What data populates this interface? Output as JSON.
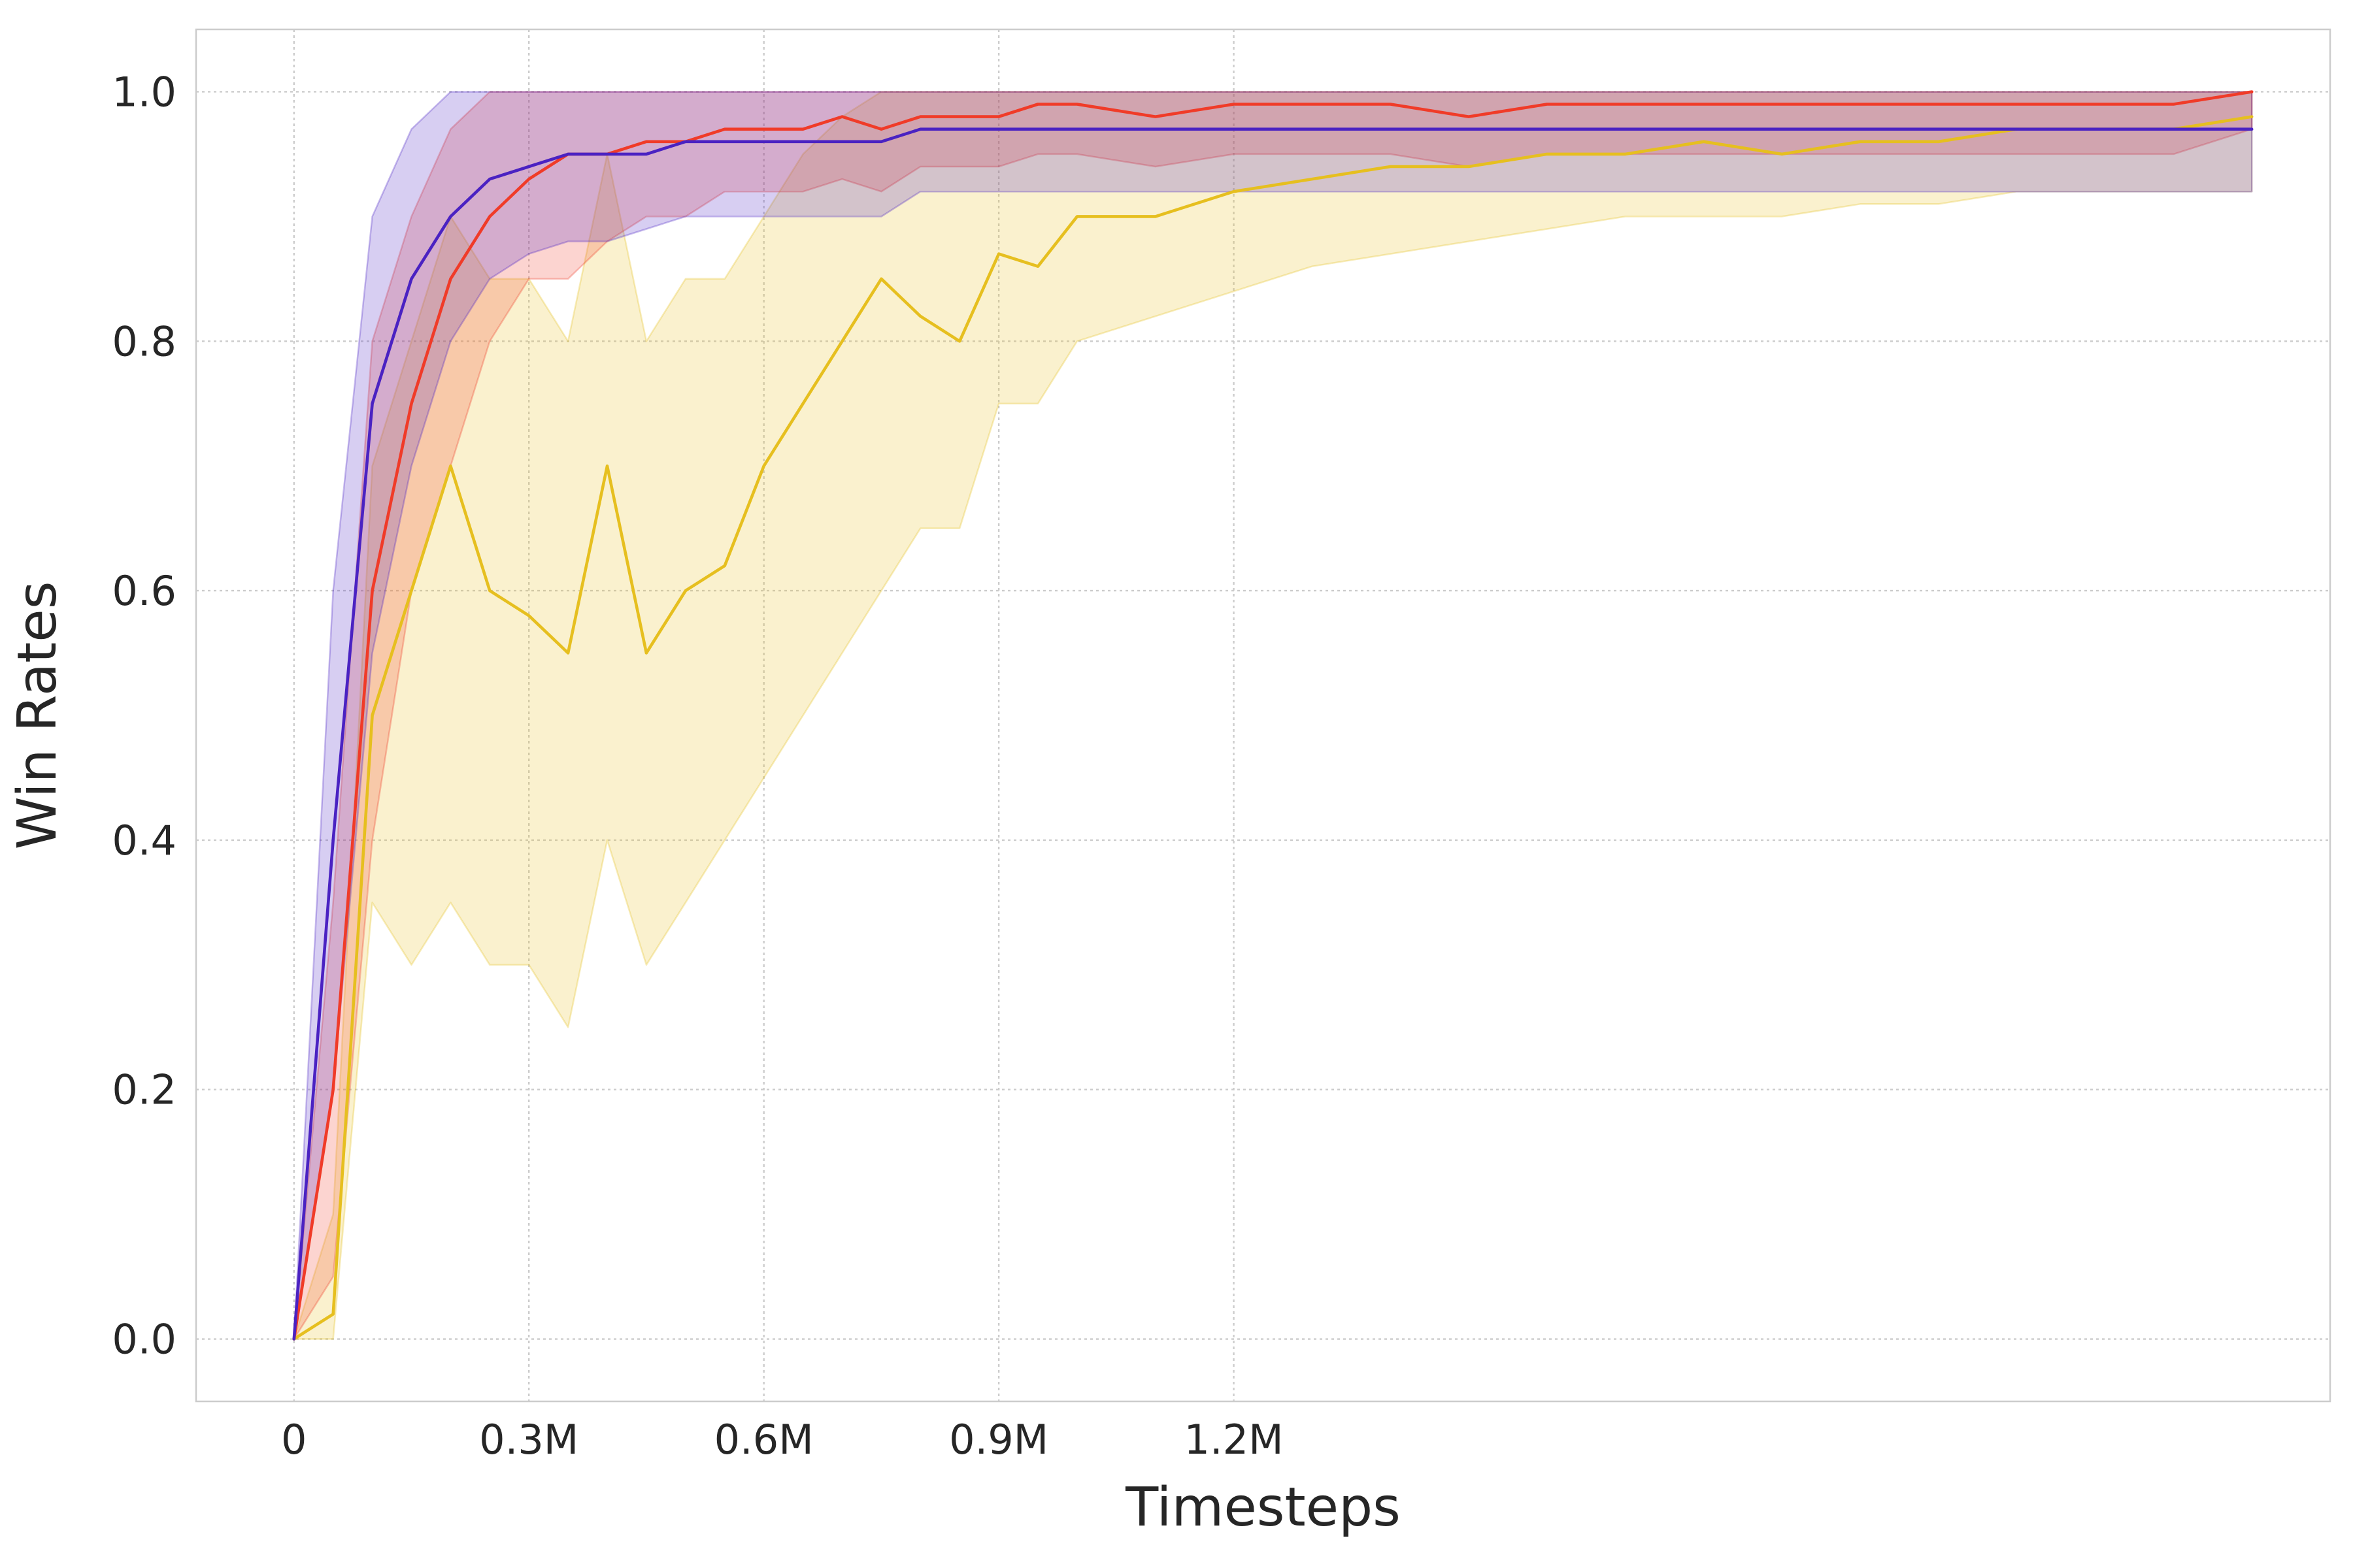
{
  "chart_data": {
    "type": "line",
    "title": "",
    "xlabel": "Timesteps",
    "ylabel": "Win Rates",
    "xlim": [
      -0.125,
      2.6
    ],
    "ylim": [
      -0.05,
      1.05
    ],
    "x_ticks": [
      {
        "value": 0,
        "label": "0"
      },
      {
        "value": 0.3,
        "label": "0.3M"
      },
      {
        "value": 0.6,
        "label": "0.6M"
      },
      {
        "value": 0.9,
        "label": "0.9M"
      },
      {
        "value": 1.2,
        "label": "1.2M"
      }
    ],
    "y_ticks": [
      {
        "value": 0.0,
        "label": "0.0"
      },
      {
        "value": 0.2,
        "label": "0.2"
      },
      {
        "value": 0.4,
        "label": "0.4"
      },
      {
        "value": 0.6,
        "label": "0.6"
      },
      {
        "value": 0.8,
        "label": "0.8"
      },
      {
        "value": 1.0,
        "label": "1.0"
      }
    ],
    "x_unit_note": "millions of timesteps",
    "grid": true,
    "legend": "none",
    "series": [
      {
        "color": "#e6bf1f",
        "x": [
          0,
          0.05,
          0.1,
          0.15,
          0.2,
          0.25,
          0.3,
          0.35,
          0.4,
          0.45,
          0.5,
          0.55,
          0.6,
          0.65,
          0.7,
          0.75,
          0.8,
          0.85,
          0.9,
          0.95,
          1.0,
          1.1,
          1.2,
          1.3,
          1.4,
          1.5,
          1.6,
          1.7,
          1.8,
          1.9,
          2.0,
          2.1,
          2.2,
          2.3,
          2.4,
          2.5
        ],
        "y": [
          0.0,
          0.02,
          0.5,
          0.6,
          0.7,
          0.6,
          0.58,
          0.55,
          0.7,
          0.55,
          0.6,
          0.62,
          0.7,
          0.75,
          0.8,
          0.85,
          0.82,
          0.8,
          0.87,
          0.86,
          0.9,
          0.9,
          0.92,
          0.93,
          0.94,
          0.94,
          0.95,
          0.95,
          0.96,
          0.95,
          0.96,
          0.96,
          0.97,
          0.97,
          0.97,
          0.98
        ],
        "lower": [
          0.0,
          0.0,
          0.35,
          0.3,
          0.35,
          0.3,
          0.3,
          0.25,
          0.4,
          0.3,
          0.35,
          0.4,
          0.45,
          0.5,
          0.55,
          0.6,
          0.65,
          0.65,
          0.75,
          0.75,
          0.8,
          0.82,
          0.84,
          0.86,
          0.87,
          0.88,
          0.89,
          0.9,
          0.9,
          0.9,
          0.91,
          0.91,
          0.92,
          0.92,
          0.92,
          0.92
        ],
        "upper": [
          0.0,
          0.1,
          0.7,
          0.8,
          0.9,
          0.85,
          0.85,
          0.8,
          0.95,
          0.8,
          0.85,
          0.85,
          0.9,
          0.95,
          0.98,
          1.0,
          1.0,
          1.0,
          1.0,
          1.0,
          1.0,
          1.0,
          1.0,
          1.0,
          1.0,
          1.0,
          1.0,
          1.0,
          1.0,
          1.0,
          1.0,
          1.0,
          1.0,
          1.0,
          1.0,
          1.0
        ]
      },
      {
        "color": "#f03b28",
        "x": [
          0,
          0.05,
          0.1,
          0.15,
          0.2,
          0.25,
          0.3,
          0.35,
          0.4,
          0.45,
          0.5,
          0.55,
          0.6,
          0.65,
          0.7,
          0.75,
          0.8,
          0.85,
          0.9,
          0.95,
          1.0,
          1.1,
          1.2,
          1.3,
          1.4,
          1.5,
          1.6,
          1.7,
          1.8,
          1.9,
          2.0,
          2.1,
          2.2,
          2.3,
          2.4,
          2.5
        ],
        "y": [
          0.0,
          0.2,
          0.6,
          0.75,
          0.85,
          0.9,
          0.93,
          0.95,
          0.95,
          0.96,
          0.96,
          0.97,
          0.97,
          0.97,
          0.98,
          0.97,
          0.98,
          0.98,
          0.98,
          0.99,
          0.99,
          0.98,
          0.99,
          0.99,
          0.99,
          0.98,
          0.99,
          0.99,
          0.99,
          0.99,
          0.99,
          0.99,
          0.99,
          0.99,
          0.99,
          1.0
        ],
        "lower": [
          0.0,
          0.05,
          0.4,
          0.6,
          0.7,
          0.8,
          0.85,
          0.85,
          0.88,
          0.9,
          0.9,
          0.92,
          0.92,
          0.92,
          0.93,
          0.92,
          0.94,
          0.94,
          0.94,
          0.95,
          0.95,
          0.94,
          0.95,
          0.95,
          0.95,
          0.94,
          0.95,
          0.95,
          0.95,
          0.95,
          0.95,
          0.95,
          0.95,
          0.95,
          0.95,
          0.97
        ],
        "upper": [
          0.0,
          0.35,
          0.8,
          0.9,
          0.97,
          1.0,
          1.0,
          1.0,
          1.0,
          1.0,
          1.0,
          1.0,
          1.0,
          1.0,
          1.0,
          1.0,
          1.0,
          1.0,
          1.0,
          1.0,
          1.0,
          1.0,
          1.0,
          1.0,
          1.0,
          1.0,
          1.0,
          1.0,
          1.0,
          1.0,
          1.0,
          1.0,
          1.0,
          1.0,
          1.0,
          1.0
        ]
      },
      {
        "color": "#4a22c2",
        "x": [
          0,
          0.05,
          0.1,
          0.15,
          0.2,
          0.25,
          0.3,
          0.35,
          0.4,
          0.45,
          0.5,
          0.55,
          0.6,
          0.65,
          0.7,
          0.75,
          0.8,
          0.85,
          0.9,
          0.95,
          1.0,
          1.1,
          1.2,
          1.3,
          1.4,
          1.5,
          1.6,
          1.7,
          1.8,
          1.9,
          2.0,
          2.1,
          2.2,
          2.3,
          2.4,
          2.5
        ],
        "y": [
          0.0,
          0.4,
          0.75,
          0.85,
          0.9,
          0.93,
          0.94,
          0.95,
          0.95,
          0.95,
          0.96,
          0.96,
          0.96,
          0.96,
          0.96,
          0.96,
          0.97,
          0.97,
          0.97,
          0.97,
          0.97,
          0.97,
          0.97,
          0.97,
          0.97,
          0.97,
          0.97,
          0.97,
          0.97,
          0.97,
          0.97,
          0.97,
          0.97,
          0.97,
          0.97,
          0.97
        ],
        "lower": [
          0.0,
          0.2,
          0.55,
          0.7,
          0.8,
          0.85,
          0.87,
          0.88,
          0.88,
          0.89,
          0.9,
          0.9,
          0.9,
          0.9,
          0.9,
          0.9,
          0.92,
          0.92,
          0.92,
          0.92,
          0.92,
          0.92,
          0.92,
          0.92,
          0.92,
          0.92,
          0.92,
          0.92,
          0.92,
          0.92,
          0.92,
          0.92,
          0.92,
          0.92,
          0.92,
          0.92
        ],
        "upper": [
          0.0,
          0.6,
          0.9,
          0.97,
          1.0,
          1.0,
          1.0,
          1.0,
          1.0,
          1.0,
          1.0,
          1.0,
          1.0,
          1.0,
          1.0,
          1.0,
          1.0,
          1.0,
          1.0,
          1.0,
          1.0,
          1.0,
          1.0,
          1.0,
          1.0,
          1.0,
          1.0,
          1.0,
          1.0,
          1.0,
          1.0,
          1.0,
          1.0,
          1.0,
          1.0,
          1.0
        ]
      }
    ]
  }
}
